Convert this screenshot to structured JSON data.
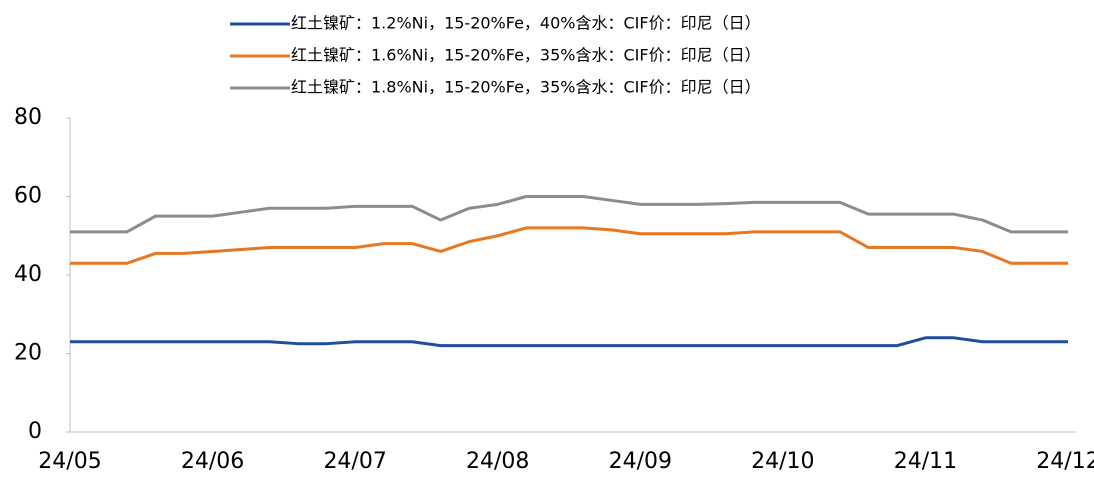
{
  "chart_data": {
    "type": "line",
    "categories": [
      "24/05",
      null,
      null,
      null,
      null,
      "24/06",
      null,
      null,
      null,
      null,
      "24/07",
      null,
      null,
      null,
      null,
      "24/08",
      null,
      null,
      null,
      null,
      "24/09",
      null,
      null,
      null,
      null,
      "24/10",
      null,
      null,
      null,
      null,
      "24/11",
      null,
      null,
      null,
      null,
      "24/12"
    ],
    "series": [
      {
        "name": "红土镍矿：1.2%Ni，15-20%Fe，40%含水：CIF价：印尼（日）",
        "color": "#1f4e9c",
        "values": [
          23,
          23,
          23,
          23,
          23,
          23,
          23,
          23,
          22.5,
          22.5,
          23,
          23,
          23,
          22,
          22,
          22,
          22,
          22,
          22,
          22,
          22,
          22,
          22,
          22,
          22,
          22,
          22,
          22,
          22,
          22,
          24,
          24,
          23,
          23,
          23,
          23
        ]
      },
      {
        "name": "红土镍矿：1.6%Ni，15-20%Fe，35%含水：CIF价：印尼（日）",
        "color": "#e87722",
        "values": [
          43,
          43,
          43,
          45.5,
          45.5,
          46,
          46.5,
          47,
          47,
          47,
          47,
          48,
          48,
          46,
          48.5,
          50,
          52,
          52,
          52,
          51.5,
          50.5,
          50.5,
          50.5,
          50.5,
          51,
          51,
          51,
          51,
          47,
          47,
          47,
          47,
          46,
          43,
          43,
          43
        ]
      },
      {
        "name": "红土镍矿：1.8%Ni，15-20%Fe，35%含水：CIF价：印尼（日）",
        "color": "#8c8c8c",
        "values": [
          51,
          51,
          51,
          55,
          55,
          55,
          56,
          57,
          57,
          57,
          57.5,
          57.5,
          57.5,
          54,
          57,
          58,
          60,
          60,
          60,
          59,
          58,
          58,
          58,
          58.2,
          58.5,
          58.5,
          58.5,
          58.5,
          55.5,
          55.5,
          55.5,
          55.5,
          54,
          51,
          51,
          51
        ]
      }
    ],
    "ylim": [
      0,
      80
    ],
    "yticks": [
      0,
      20,
      40,
      60,
      80
    ],
    "grid": false,
    "legend": "top"
  }
}
